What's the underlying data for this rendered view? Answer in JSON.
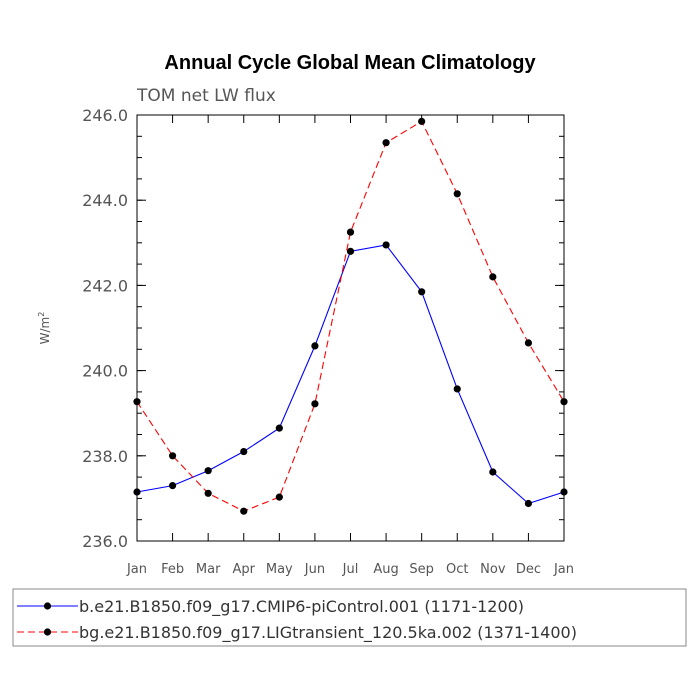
{
  "chart_data": {
    "type": "line",
    "title": "Annual Cycle Global Mean Climatology",
    "subtitle": "TOM net LW flux",
    "xlabel": "",
    "ylabel": "W/m",
    "ylabel_sup": "2",
    "categories": [
      "Jan",
      "Feb",
      "Mar",
      "Apr",
      "May",
      "Jun",
      "Jul",
      "Aug",
      "Sep",
      "Oct",
      "Nov",
      "Dec",
      "Jan"
    ],
    "ylim": [
      236.0,
      246.0
    ],
    "yticks": [
      236.0,
      238.0,
      240.0,
      242.0,
      244.0,
      246.0
    ],
    "ytick_labels": [
      "236.0",
      "238.0",
      "240.0",
      "242.0",
      "244.0",
      "246.0"
    ],
    "series": [
      {
        "name": "b.e21.B1850.f09_g17.CMIP6-piControl.001 (1171-1200)",
        "color": "#0000ff",
        "dash": "solid",
        "values": [
          237.15,
          237.3,
          237.65,
          238.1,
          238.65,
          240.58,
          242.8,
          242.95,
          241.85,
          239.57,
          237.62,
          236.88,
          237.15
        ]
      },
      {
        "name": "bg.e21.B1850.f09_g17.LIGtransient_120.5ka.002 (1371-1400)",
        "color": "#ff0000",
        "dash": "dashed",
        "values": [
          239.27,
          238.0,
          237.12,
          236.7,
          237.03,
          239.22,
          243.25,
          245.35,
          245.85,
          244.15,
          242.2,
          240.65,
          239.27
        ]
      }
    ],
    "marker_color": "#000000"
  }
}
